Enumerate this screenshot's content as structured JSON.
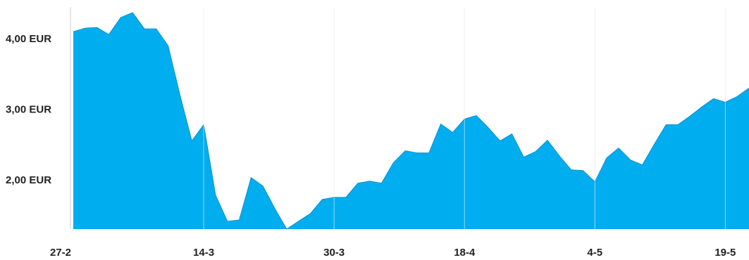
{
  "chart_data": {
    "type": "area",
    "title": "",
    "xlabel": "",
    "ylabel": "",
    "x_ticks": [
      "27-2",
      "14-3",
      "30-3",
      "18-4",
      "4-5",
      "19-5"
    ],
    "y_ticks": [
      {
        "value": 4.0,
        "label": "4,00 EUR"
      },
      {
        "value": 3.0,
        "label": "3,00 EUR"
      },
      {
        "value": 2.0,
        "label": "2,00 EUR"
      }
    ],
    "ylim": [
      1.3,
      4.45
    ],
    "grid": "vertical",
    "colors": {
      "fill": "#00aeef",
      "stroke": "#0090d0",
      "grid": "#e6e6e6",
      "axis": "#cccccc"
    },
    "values": [
      4.1,
      4.15,
      4.16,
      4.06,
      4.3,
      4.37,
      4.14,
      4.14,
      3.9,
      3.2,
      2.55,
      2.78,
      1.78,
      1.41,
      1.43,
      2.03,
      1.91,
      1.59,
      1.3,
      1.41,
      1.52,
      1.72,
      1.75,
      1.75,
      1.95,
      1.98,
      1.95,
      2.24,
      2.41,
      2.38,
      2.38,
      2.79,
      2.67,
      2.86,
      2.91,
      2.74,
      2.55,
      2.65,
      2.32,
      2.4,
      2.56,
      2.34,
      2.14,
      2.13,
      1.97,
      2.31,
      2.45,
      2.28,
      2.21,
      2.5,
      2.78,
      2.78,
      2.9,
      3.03,
      3.15,
      3.1,
      3.18,
      3.3
    ],
    "tick_index": [
      0,
      11,
      22,
      33,
      44,
      55
    ]
  }
}
